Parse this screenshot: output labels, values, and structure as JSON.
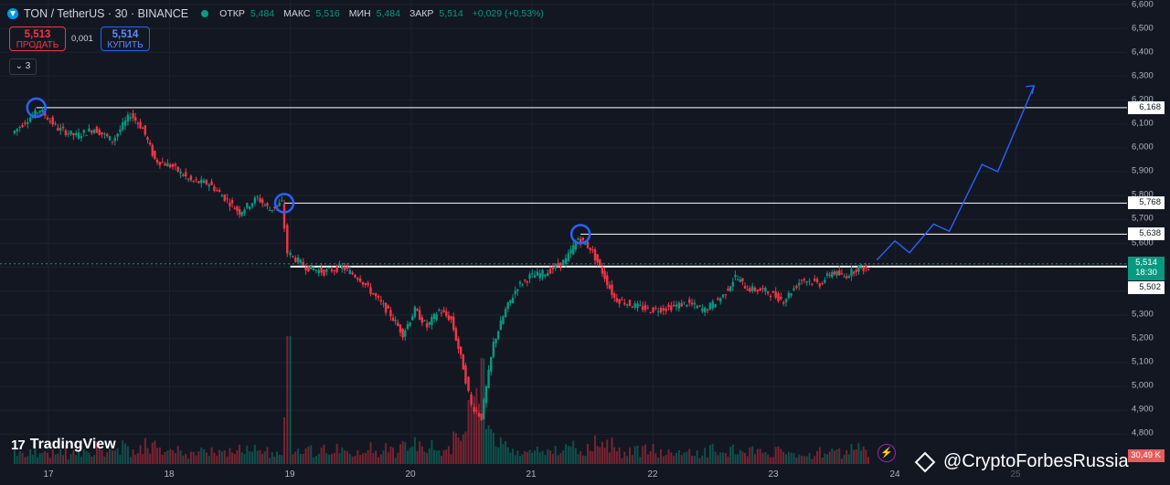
{
  "header": {
    "symbol": "TON / TetherUS · 30 · BINANCE",
    "open_label": "ОТКР",
    "open_value": "5,484",
    "high_label": "МАКС",
    "high_value": "5,516",
    "low_label": "МИН",
    "low_value": "5,484",
    "close_label": "ЗАКР",
    "close_value": "5,514",
    "change": "+0,029 (+0,53%)",
    "sell_price": "5,513",
    "sell_label": "ПРОДАТЬ",
    "spread": "0,001",
    "buy_price": "5,514",
    "buy_label": "КУПИТЬ",
    "layers_count": "3"
  },
  "price_axis": {
    "ticks": [
      "6,600",
      "6,500",
      "6,400",
      "6,300",
      "6,200",
      "6,100",
      "6,000",
      "5,900",
      "5,800",
      "5,700",
      "5,600",
      "5,300",
      "5,200",
      "5,100",
      "5,000",
      "4,900",
      "4,800"
    ],
    "labels": {
      "res_high": "6,168",
      "res_mid": "5,768",
      "res_low": "5,638",
      "current": "5,514",
      "countdown": "18:30",
      "support": "5,502",
      "volume": "30,49 K"
    }
  },
  "time_axis": {
    "labels": [
      "17",
      "18",
      "19",
      "20",
      "21",
      "22",
      "23",
      "24",
      "25"
    ]
  },
  "branding": {
    "logo_mark": "17",
    "logo_text": "TradingView",
    "watermark": "@CryptoForbesRussia"
  },
  "colors": {
    "up": "#089981",
    "down": "#f23645",
    "forecast": "#2962ff",
    "background": "#131722"
  },
  "chart_data": {
    "type": "candlestick",
    "instrument": "TON / TetherUS",
    "interval": "30",
    "exchange": "BINANCE",
    "y_range": [
      4.72,
      6.6
    ],
    "x_days": [
      "17",
      "18",
      "19",
      "20",
      "21",
      "22",
      "23",
      "24",
      "25"
    ],
    "horizontal_levels": [
      6.168,
      5.768,
      5.638,
      5.502
    ],
    "touch_points": [
      {
        "day": 16.9,
        "price": 6.168
      },
      {
        "day": 18.95,
        "price": 5.768
      },
      {
        "day": 21.4,
        "price": 5.638
      }
    ],
    "price_path": [
      [
        16.72,
        6.06
      ],
      [
        16.85,
        6.12
      ],
      [
        16.95,
        6.16
      ],
      [
        17.1,
        6.08
      ],
      [
        17.25,
        6.05
      ],
      [
        17.4,
        6.08
      ],
      [
        17.55,
        6.03
      ],
      [
        17.7,
        6.14
      ],
      [
        17.8,
        6.08
      ],
      [
        17.9,
        5.95
      ],
      [
        18.05,
        5.92
      ],
      [
        18.2,
        5.86
      ],
      [
        18.35,
        5.85
      ],
      [
        18.5,
        5.78
      ],
      [
        18.6,
        5.73
      ],
      [
        18.75,
        5.79
      ],
      [
        18.85,
        5.74
      ],
      [
        18.95,
        5.77
      ],
      [
        19.0,
        5.56
      ],
      [
        19.15,
        5.5
      ],
      [
        19.3,
        5.48
      ],
      [
        19.45,
        5.5
      ],
      [
        19.6,
        5.45
      ],
      [
        19.75,
        5.36
      ],
      [
        19.85,
        5.3
      ],
      [
        19.95,
        5.22
      ],
      [
        20.05,
        5.32
      ],
      [
        20.15,
        5.25
      ],
      [
        20.25,
        5.32
      ],
      [
        20.35,
        5.28
      ],
      [
        20.45,
        5.08
      ],
      [
        20.52,
        4.92
      ],
      [
        20.6,
        4.87
      ],
      [
        20.7,
        5.18
      ],
      [
        20.8,
        5.32
      ],
      [
        20.9,
        5.42
      ],
      [
        21.0,
        5.46
      ],
      [
        21.15,
        5.48
      ],
      [
        21.3,
        5.53
      ],
      [
        21.4,
        5.62
      ],
      [
        21.5,
        5.58
      ],
      [
        21.6,
        5.48
      ],
      [
        21.7,
        5.37
      ],
      [
        21.85,
        5.34
      ],
      [
        22.0,
        5.32
      ],
      [
        22.15,
        5.33
      ],
      [
        22.3,
        5.35
      ],
      [
        22.45,
        5.32
      ],
      [
        22.6,
        5.38
      ],
      [
        22.7,
        5.46
      ],
      [
        22.8,
        5.41
      ],
      [
        22.95,
        5.4
      ],
      [
        23.1,
        5.36
      ],
      [
        23.25,
        5.45
      ],
      [
        23.4,
        5.43
      ],
      [
        23.5,
        5.48
      ],
      [
        23.6,
        5.46
      ],
      [
        23.72,
        5.5
      ],
      [
        23.8,
        5.49
      ]
    ],
    "forecast_path": [
      [
        23.85,
        5.53
      ],
      [
        24.0,
        5.61
      ],
      [
        24.12,
        5.56
      ],
      [
        24.32,
        5.68
      ],
      [
        24.45,
        5.65
      ],
      [
        24.72,
        5.93
      ],
      [
        24.85,
        5.9
      ],
      [
        25.15,
        6.26
      ]
    ]
  }
}
